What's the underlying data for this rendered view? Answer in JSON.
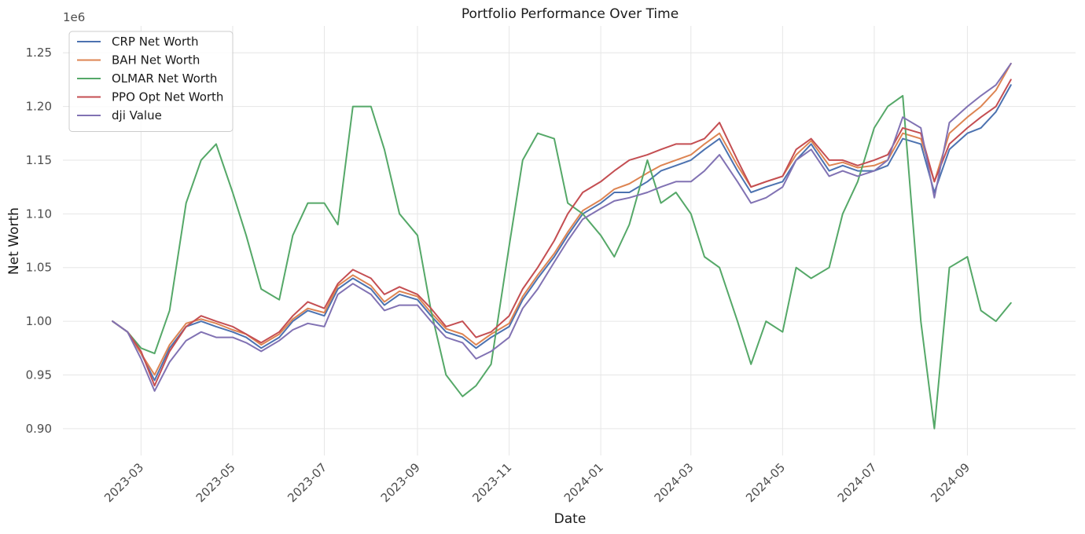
{
  "chart_data": {
    "type": "line",
    "title": "Portfolio Performance Over Time",
    "xlabel": "Date",
    "ylabel": "Net Worth",
    "y_offset_label": "1e6",
    "y_scale": 1000000,
    "x_ticks": [
      "2023-03",
      "2023-05",
      "2023-07",
      "2023-09",
      "2023-11",
      "2024-01",
      "2024-03",
      "2024-05",
      "2024-07",
      "2024-09"
    ],
    "y_ticks": [
      0.9,
      0.95,
      1.0,
      1.05,
      1.1,
      1.15,
      1.2,
      1.25
    ],
    "y_tick_labels": [
      "0.90",
      "0.95",
      "1.00",
      "1.05",
      "1.10",
      "1.15",
      "1.20",
      "1.25"
    ],
    "xlim": [
      "2023-01-08",
      "2024-11-12"
    ],
    "ylim": [
      0.875,
      1.275
    ],
    "grid": true,
    "legend_position": "upper-left",
    "x": [
      "2023-02-10",
      "2023-02-20",
      "2023-03-01",
      "2023-03-10",
      "2023-03-20",
      "2023-03-31",
      "2023-04-10",
      "2023-04-20",
      "2023-05-01",
      "2023-05-10",
      "2023-05-20",
      "2023-06-01",
      "2023-06-10",
      "2023-06-20",
      "2023-07-01",
      "2023-07-10",
      "2023-07-20",
      "2023-08-01",
      "2023-08-10",
      "2023-08-20",
      "2023-09-01",
      "2023-09-10",
      "2023-09-20",
      "2023-10-01",
      "2023-10-10",
      "2023-10-20",
      "2023-11-01",
      "2023-11-10",
      "2023-11-20",
      "2023-12-01",
      "2023-12-10",
      "2023-12-20",
      "2024-01-01",
      "2024-01-10",
      "2024-01-20",
      "2024-02-01",
      "2024-02-10",
      "2024-02-20",
      "2024-03-01",
      "2024-03-10",
      "2024-03-20",
      "2024-04-01",
      "2024-04-10",
      "2024-04-20",
      "2024-05-01",
      "2024-05-10",
      "2024-05-20",
      "2024-06-01",
      "2024-06-10",
      "2024-06-20",
      "2024-07-01",
      "2024-07-10",
      "2024-07-20",
      "2024-08-01",
      "2024-08-10",
      "2024-08-20",
      "2024-09-01",
      "2024-09-10",
      "2024-09-20",
      "2024-09-30"
    ],
    "series": [
      {
        "name": "CRP Net Worth",
        "color": "#4c72b0",
        "values": [
          1.0,
          0.99,
          0.97,
          0.945,
          0.975,
          0.995,
          1.0,
          0.995,
          0.99,
          0.985,
          0.975,
          0.985,
          1.0,
          1.01,
          1.005,
          1.03,
          1.04,
          1.03,
          1.015,
          1.025,
          1.02,
          1.005,
          0.99,
          0.985,
          0.975,
          0.985,
          0.995,
          1.02,
          1.04,
          1.06,
          1.08,
          1.1,
          1.11,
          1.12,
          1.12,
          1.13,
          1.14,
          1.145,
          1.15,
          1.16,
          1.17,
          1.14,
          1.12,
          1.125,
          1.13,
          1.15,
          1.165,
          1.14,
          1.145,
          1.14,
          1.14,
          1.145,
          1.17,
          1.165,
          1.12,
          1.16,
          1.175,
          1.18,
          1.195,
          1.22
        ]
      },
      {
        "name": "BAH Net Worth",
        "color": "#dd8452",
        "values": [
          1.0,
          0.99,
          0.97,
          0.95,
          0.978,
          0.998,
          1.002,
          0.998,
          0.992,
          0.988,
          0.978,
          0.988,
          1.002,
          1.012,
          1.008,
          1.033,
          1.043,
          1.033,
          1.018,
          1.028,
          1.023,
          1.008,
          0.993,
          0.988,
          0.978,
          0.988,
          0.998,
          1.023,
          1.043,
          1.063,
          1.083,
          1.103,
          1.113,
          1.123,
          1.128,
          1.138,
          1.145,
          1.15,
          1.155,
          1.165,
          1.175,
          1.145,
          1.125,
          1.13,
          1.135,
          1.155,
          1.168,
          1.145,
          1.148,
          1.143,
          1.145,
          1.15,
          1.175,
          1.17,
          1.13,
          1.175,
          1.19,
          1.2,
          1.215,
          1.24
        ]
      },
      {
        "name": "OLMAR Net Worth",
        "color": "#55a868",
        "values": [
          1.0,
          0.99,
          0.975,
          0.97,
          1.01,
          1.11,
          1.15,
          1.165,
          1.12,
          1.08,
          1.03,
          1.02,
          1.08,
          1.11,
          1.11,
          1.09,
          1.2,
          1.2,
          1.16,
          1.1,
          1.08,
          1.01,
          0.95,
          0.93,
          0.94,
          0.96,
          1.07,
          1.15,
          1.175,
          1.17,
          1.11,
          1.1,
          1.08,
          1.06,
          1.09,
          1.15,
          1.11,
          1.12,
          1.1,
          1.06,
          1.05,
          1.0,
          0.96,
          1.0,
          0.99,
          1.05,
          1.04,
          1.05,
          1.1,
          1.13,
          1.18,
          1.2,
          1.21,
          1.0,
          0.9,
          1.05,
          1.06,
          1.01,
          1.0,
          1.017
        ]
      },
      {
        "name": "PPO Opt Net Worth",
        "color": "#c44e52",
        "values": [
          1.0,
          0.99,
          0.972,
          0.94,
          0.972,
          0.995,
          1.005,
          1.0,
          0.995,
          0.988,
          0.98,
          0.99,
          1.005,
          1.018,
          1.012,
          1.035,
          1.048,
          1.04,
          1.025,
          1.032,
          1.025,
          1.012,
          0.995,
          1.0,
          0.985,
          0.99,
          1.005,
          1.03,
          1.05,
          1.075,
          1.1,
          1.12,
          1.13,
          1.14,
          1.15,
          1.155,
          1.16,
          1.165,
          1.165,
          1.17,
          1.185,
          1.15,
          1.125,
          1.13,
          1.135,
          1.16,
          1.17,
          1.15,
          1.15,
          1.145,
          1.15,
          1.155,
          1.18,
          1.175,
          1.13,
          1.165,
          1.18,
          1.19,
          1.2,
          1.225
        ]
      },
      {
        "name": "dji Value",
        "color": "#8172b3",
        "values": [
          1.0,
          0.99,
          0.965,
          0.935,
          0.962,
          0.982,
          0.99,
          0.985,
          0.985,
          0.98,
          0.972,
          0.982,
          0.992,
          0.998,
          0.995,
          1.025,
          1.035,
          1.025,
          1.01,
          1.015,
          1.015,
          1.0,
          0.985,
          0.98,
          0.965,
          0.972,
          0.985,
          1.012,
          1.03,
          1.055,
          1.075,
          1.095,
          1.105,
          1.112,
          1.115,
          1.12,
          1.125,
          1.13,
          1.13,
          1.14,
          1.155,
          1.13,
          1.11,
          1.115,
          1.125,
          1.15,
          1.16,
          1.135,
          1.14,
          1.135,
          1.14,
          1.15,
          1.19,
          1.18,
          1.115,
          1.185,
          1.2,
          1.21,
          1.22,
          1.24
        ]
      }
    ]
  }
}
